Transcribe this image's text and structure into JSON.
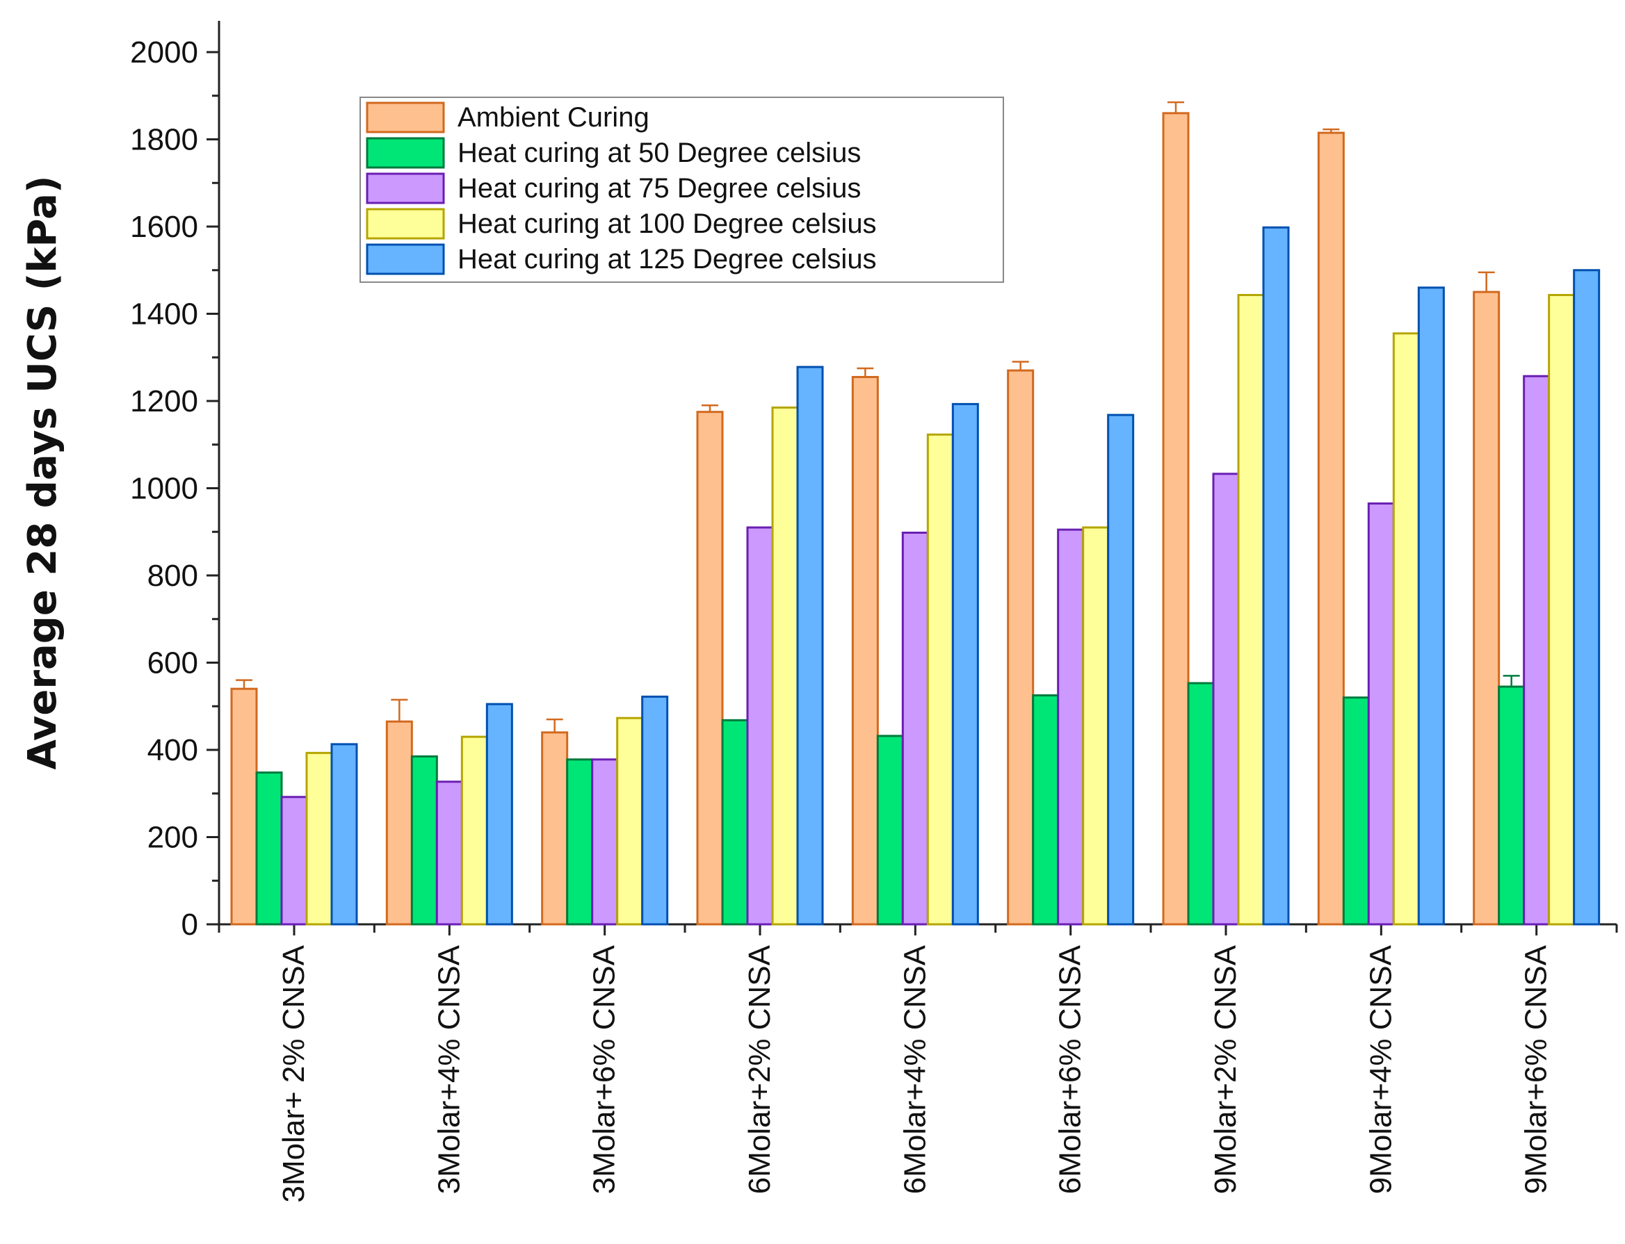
{
  "chart_data": {
    "type": "bar",
    "title": "",
    "xlabel": "",
    "ylabel": "Average 28 days UCS (kPa)",
    "ylim": [
      0,
      2000
    ],
    "yticks": [
      0,
      200,
      400,
      600,
      800,
      1000,
      1200,
      1400,
      1600,
      1800,
      2000
    ],
    "legend_position": "top-left",
    "categories": [
      "3Molar+ 2% CNSA",
      "3Molar+4% CNSA",
      "3Molar+6% CNSA",
      "6Molar+2% CNSA",
      "6Molar+4% CNSA",
      "6Molar+6% CNSA",
      "9Molar+2% CNSA",
      "9Molar+4% CNSA",
      "9Molar+6% CNSA"
    ],
    "series": [
      {
        "name": "Ambient Curing",
        "color": "#FFC08F",
        "edge": "#D2691E",
        "values": [
          540,
          465,
          440,
          1175,
          1255,
          1270,
          1860,
          1815,
          1450
        ],
        "errors": [
          20,
          50,
          30,
          15,
          20,
          20,
          25,
          8,
          45
        ]
      },
      {
        "name": "Heat curing at 50 Degree celsius",
        "color": "#00E676",
        "edge": "#007A3D",
        "values": [
          348,
          385,
          378,
          468,
          432,
          525,
          553,
          520,
          545
        ],
        "errors": [
          0,
          0,
          0,
          0,
          0,
          0,
          0,
          0,
          25
        ]
      },
      {
        "name": "Heat curing at 75 Degree celsius",
        "color": "#CC99FF",
        "edge": "#6A1FB3",
        "values": [
          292,
          327,
          378,
          910,
          898,
          905,
          1033,
          965,
          1257
        ],
        "errors": [
          0,
          0,
          0,
          0,
          0,
          0,
          0,
          0,
          0
        ]
      },
      {
        "name": "Heat curing at 100 Degree celsius",
        "color": "#FFFF99",
        "edge": "#B5A500",
        "values": [
          393,
          430,
          473,
          1185,
          1123,
          910,
          1443,
          1355,
          1443
        ],
        "errors": [
          0,
          0,
          0,
          0,
          0,
          0,
          0,
          0,
          0
        ]
      },
      {
        "name": "Heat curing at 125 Degree celsius",
        "color": "#66B3FF",
        "edge": "#0050B0",
        "values": [
          413,
          505,
          522,
          1278,
          1193,
          1168,
          1598,
          1460,
          1500
        ],
        "errors": [
          0,
          0,
          0,
          0,
          0,
          0,
          0,
          0,
          0
        ]
      }
    ]
  }
}
